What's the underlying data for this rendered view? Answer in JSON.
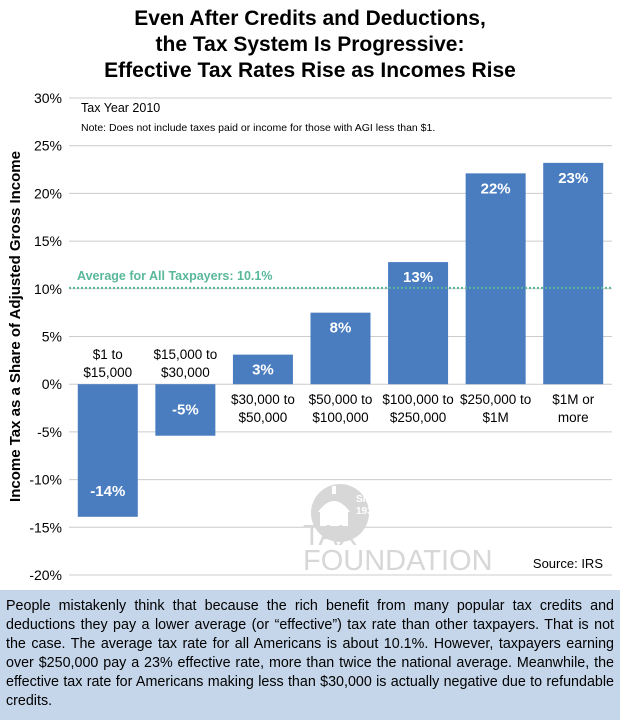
{
  "title_lines": [
    "Even After Credits and Deductions,",
    "the Tax System Is Progressive:",
    "Effective Tax Rates Rise as Incomes Rise"
  ],
  "note_year": "Tax Year 2010",
  "note_text": "Note: Does not include taxes paid or income for those with AGI less than $1.",
  "source": "Source: IRS",
  "logo": {
    "word1": "TAX",
    "word2": "FOUNDATION",
    "seal": "Since 1937"
  },
  "caption": "People mistakenly think that because the rich benefit from many popular tax credits and deductions they pay a lower average (or “effective”) tax rate than other taxpayers. That is not the case. The average tax rate for all Americans is about 10.1%. However, taxpayers earning over $250,000 pay a 23% effective rate, more than twice the national average. Meanwhile, the effective tax rate for Americans making less than $30,000 is actually negative due to refundable credits.",
  "colors": {
    "bar": "#4a7cc0",
    "average_line": "#59b89a",
    "caption_bg": "#c5d6ea",
    "logo": "#d7d7d7"
  },
  "chart_data": {
    "type": "bar",
    "ylabel": "Income Tax as a Share of Adjusted Gross Income",
    "ylim": [
      -20,
      30
    ],
    "yticks": [
      30,
      25,
      20,
      15,
      10,
      5,
      0,
      -5,
      -10,
      -15,
      -20
    ],
    "ytick_labels": [
      "30%",
      "25%",
      "20%",
      "15%",
      "10%",
      "5%",
      "0%",
      "-5%",
      "-10%",
      "-15%",
      "-20%"
    ],
    "grid": true,
    "categories": [
      [
        "$1 to",
        "$15,000"
      ],
      [
        "$15,000 to",
        "$30,000"
      ],
      [
        "$30,000 to",
        "$50,000"
      ],
      [
        "$50,000 to",
        "$100,000"
      ],
      [
        "$100,000 to",
        "$250,000"
      ],
      [
        "$250,000 to",
        "$1M"
      ],
      [
        "$1M or",
        "more"
      ]
    ],
    "values": [
      -13.9,
      -5.4,
      3.1,
      7.5,
      12.8,
      22.1,
      23.2
    ],
    "value_labels": [
      "-14%",
      "-5%",
      "3%",
      "8%",
      "13%",
      "22%",
      "23%"
    ],
    "average": {
      "value": 10.1,
      "label": "Average for All Taxpayers: 10.1%"
    }
  }
}
